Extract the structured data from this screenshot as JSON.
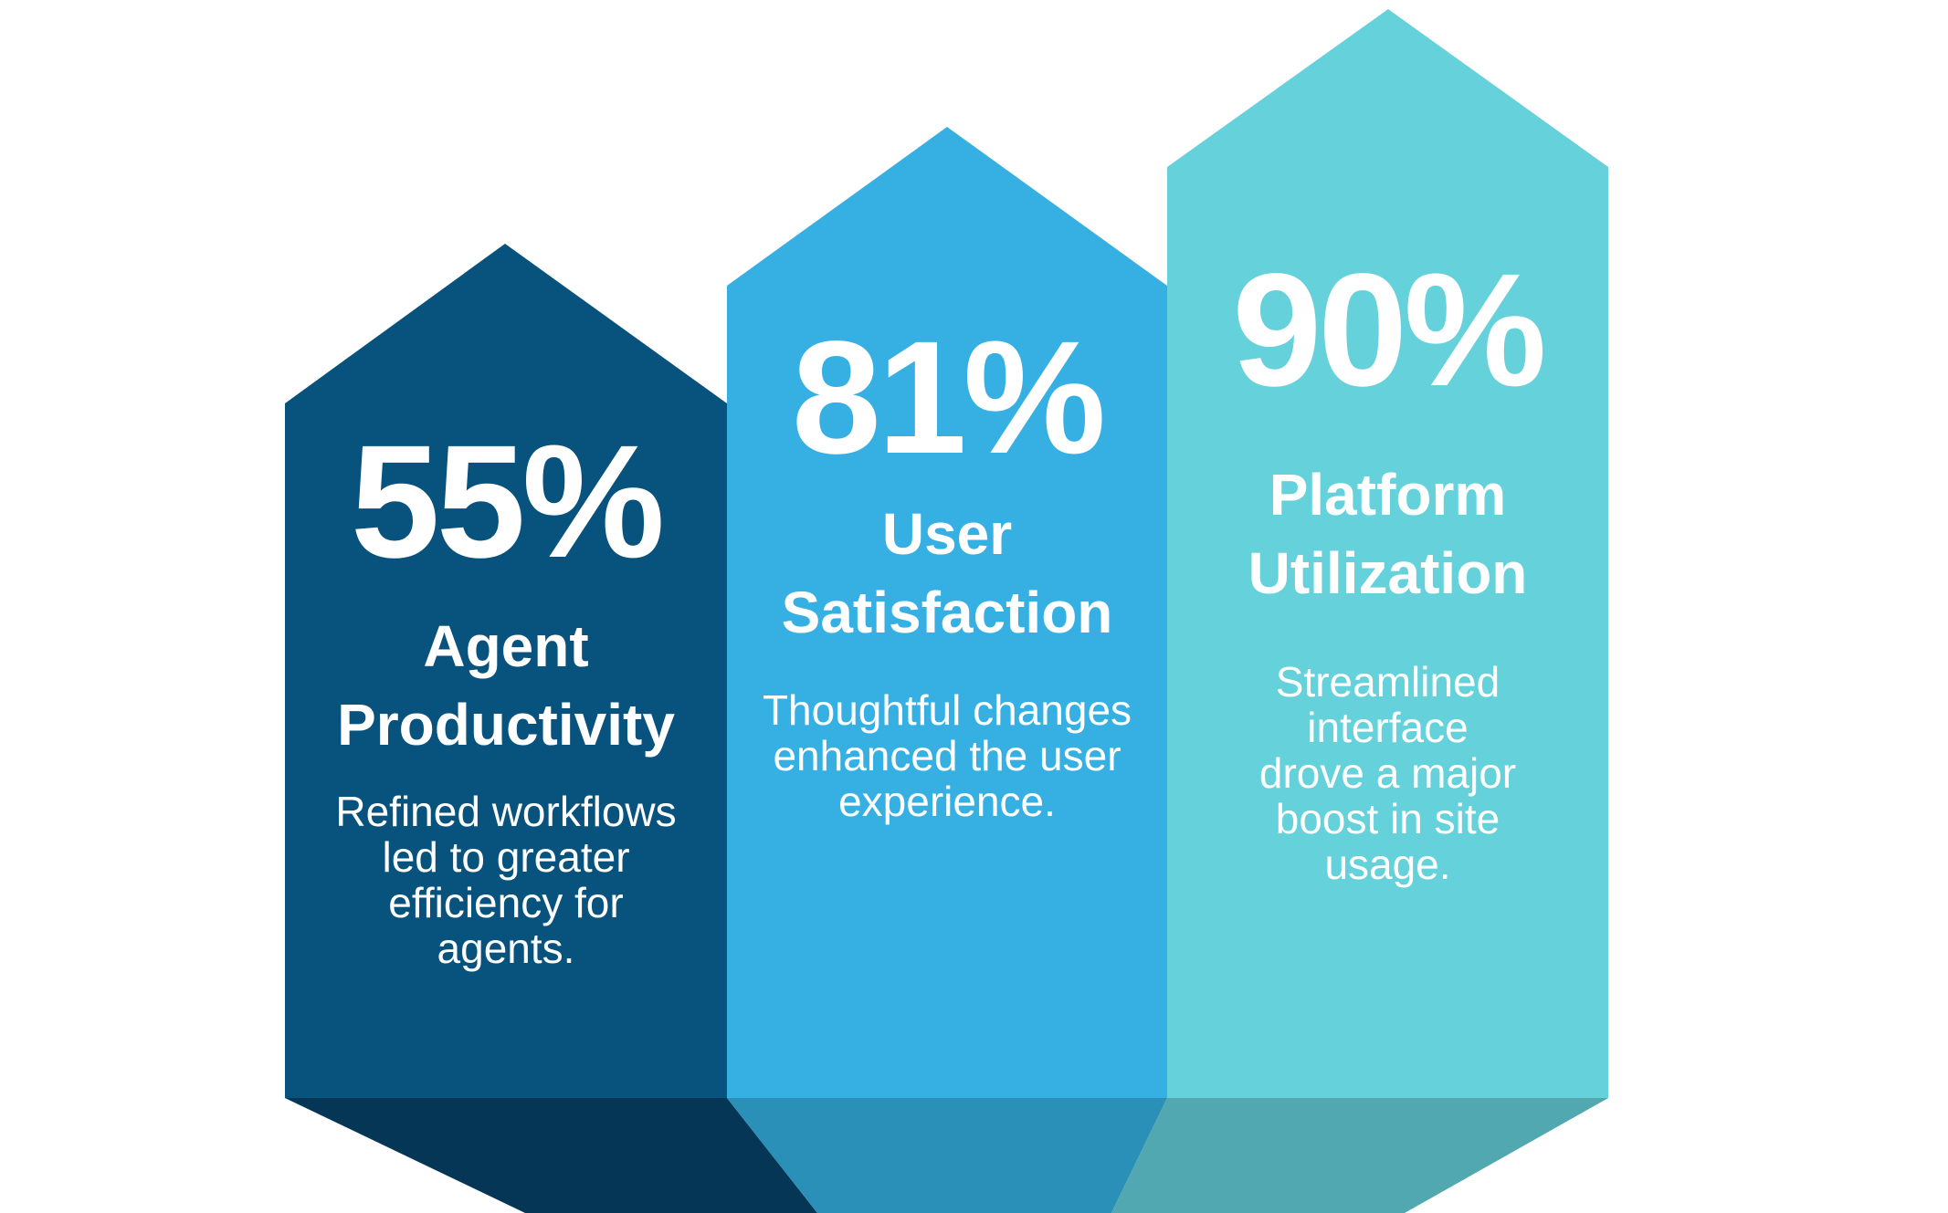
{
  "colors": {
    "background": "#ffffff",
    "text": "#ffffff"
  },
  "pillars": [
    {
      "percent": "55%",
      "title": "Agent\nProductivity",
      "description": "Refined workflows\nled to greater\nefficiency for\nagents.",
      "color": "#08527E",
      "shadow_color": "#063655"
    },
    {
      "percent": "81%",
      "title": "User\nSatisfaction",
      "description": "Thoughtful changes\nenhanced the user\nexperience.",
      "color": "#36B0E3",
      "shadow_color": "#2B90B8"
    },
    {
      "percent": "90%",
      "title": "Platform\nUtilization",
      "description": "Streamlined\ninterface\ndrove a major\nboost in site\nusage.",
      "color": "#65D1DB",
      "shadow_color": "#52A8B0"
    }
  ]
}
